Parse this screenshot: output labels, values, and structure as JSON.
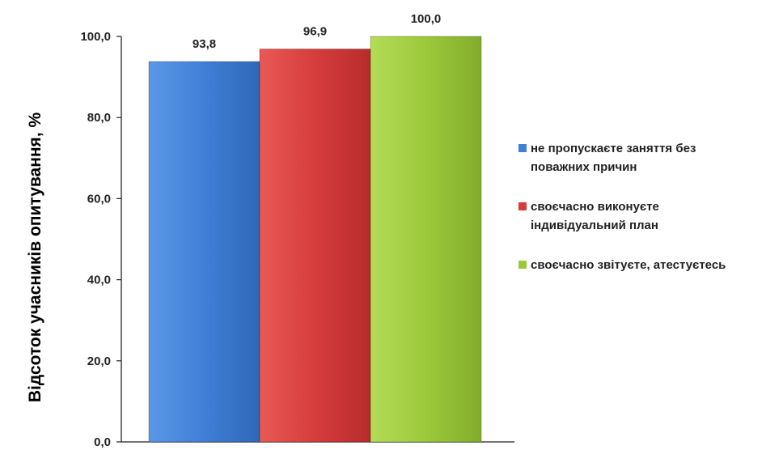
{
  "chart_data": {
    "type": "bar",
    "title": "",
    "xlabel": "",
    "ylabel": "Відсоток учасників опитування, %",
    "ylim": [
      0,
      100
    ],
    "yticks": [
      "0,0",
      "20,0",
      "40,0",
      "60,0",
      "80,0",
      "100,0"
    ],
    "grid": false,
    "legend_position": "right",
    "series": [
      {
        "name": "не пропускаєте заняття без поважних причин",
        "value": 93.8,
        "label": "93,8",
        "color": "#3f7fd6"
      },
      {
        "name": "своєчасно виконуєте індивідуальний план",
        "value": 96.9,
        "label": "96,9",
        "color": "#d63c3c"
      },
      {
        "name": "своєчасно звітуєте, атестуєтесь",
        "value": 100.0,
        "label": "100,0",
        "color": "#9bc93b"
      }
    ]
  },
  "legend": {
    "items": [
      {
        "line1": "не пропускаєте заняття без",
        "line2": "поважних причин"
      },
      {
        "line1": "своєчасно виконуєте",
        "line2": "індивідуальний план"
      },
      {
        "line1": "своєчасно звітуєте, атестуєтесь",
        "line2": ""
      }
    ]
  }
}
